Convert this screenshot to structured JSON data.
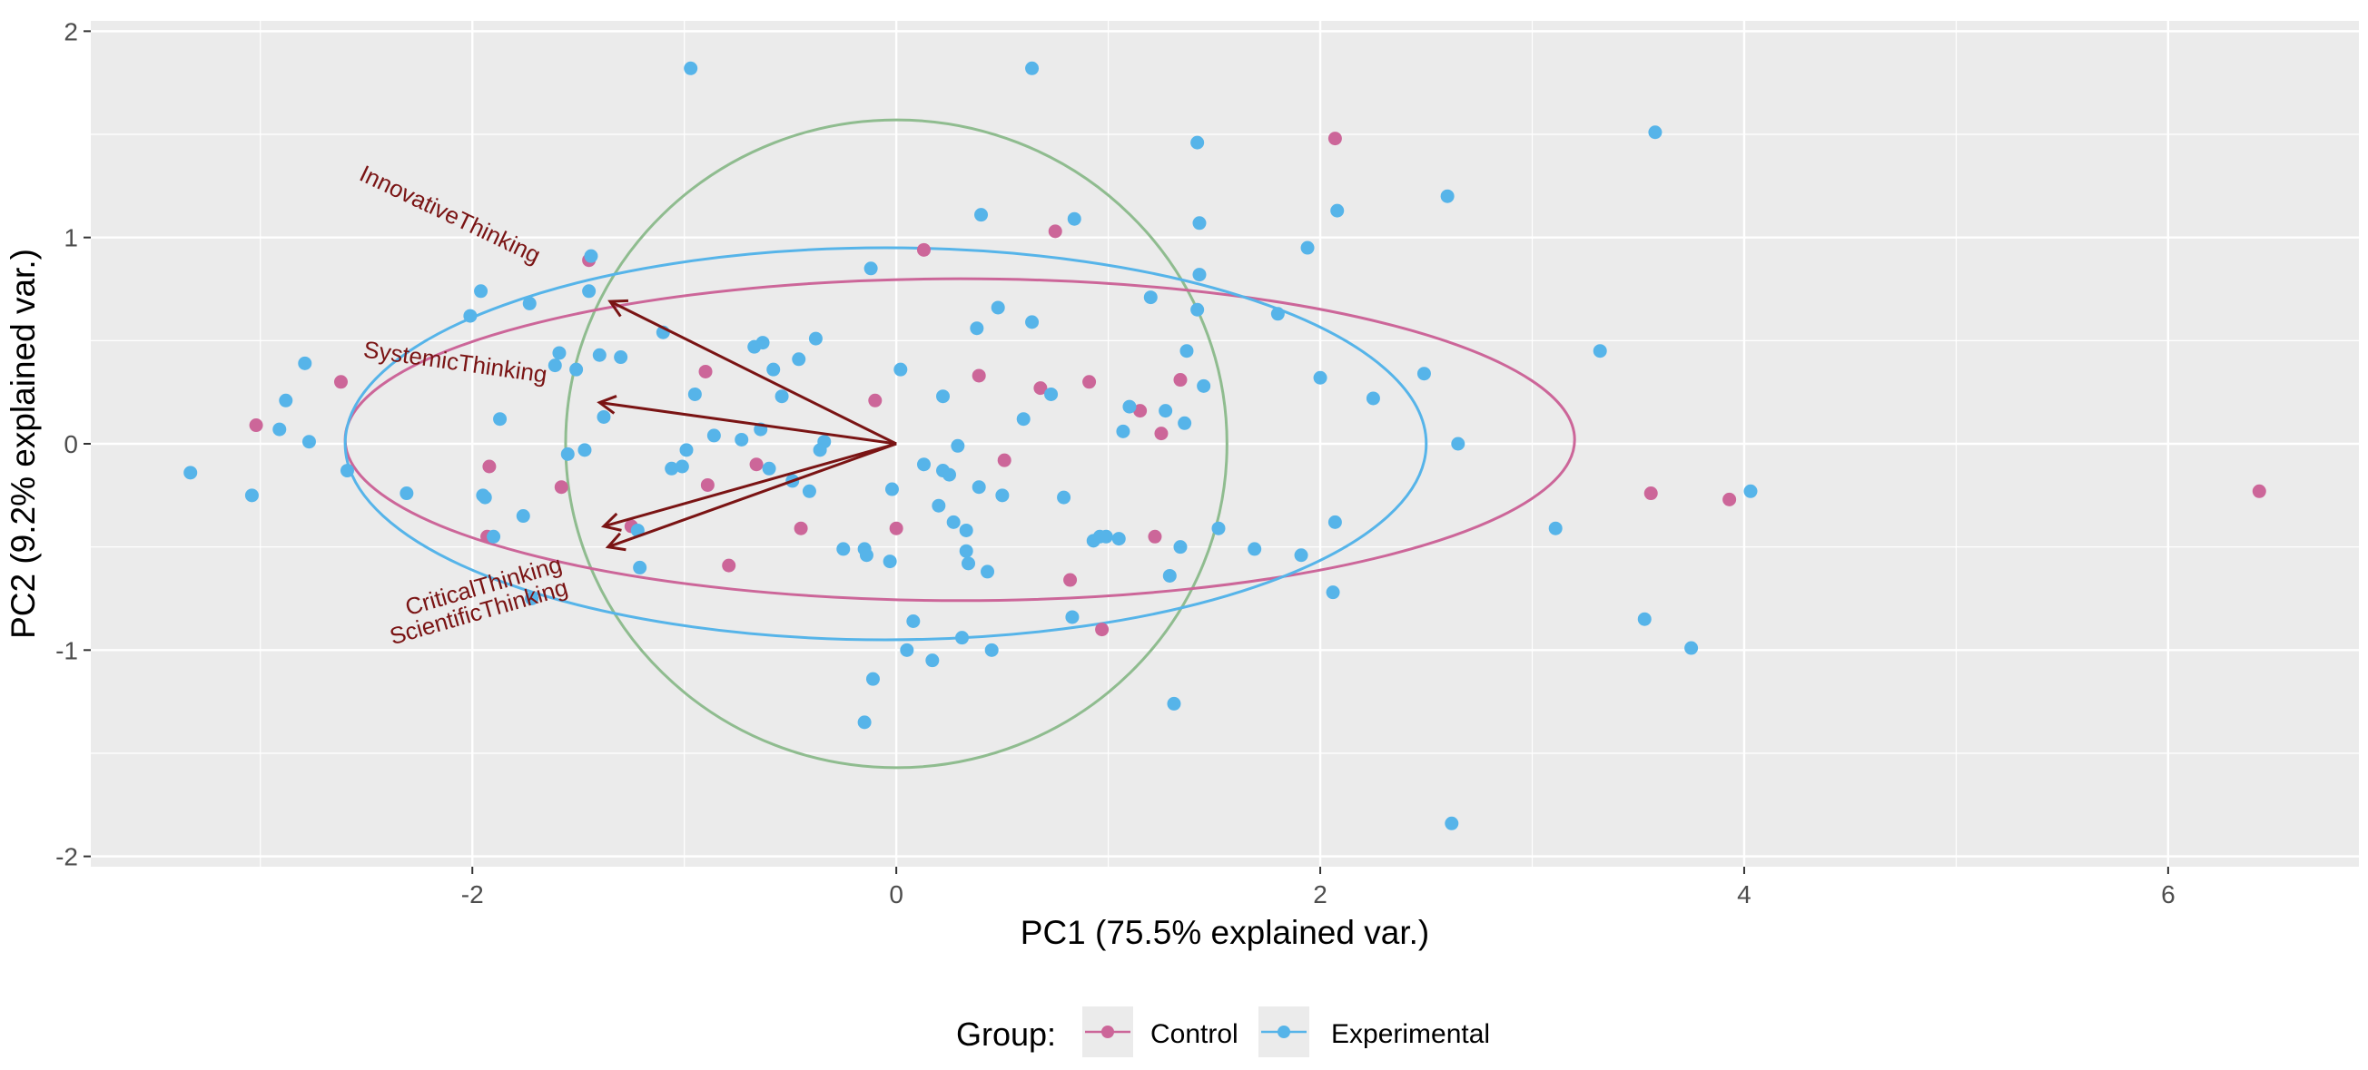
{
  "chart_data": {
    "type": "scatter",
    "subtype": "PCA biplot",
    "title": "",
    "xlabel": "PC1 (75.5% explained var.)",
    "ylabel": "PC2 (9.2% explained var.)",
    "xlim": [
      -3.8,
      6.9
    ],
    "ylim": [
      -2.05,
      2.05
    ],
    "x_ticks": [
      -2,
      0,
      2,
      4,
      6
    ],
    "y_ticks": [
      -2,
      -1,
      0,
      1,
      2
    ],
    "x_tick_labels": [
      "-2",
      "0",
      "2",
      "4",
      "6"
    ],
    "y_tick_labels": [
      "-2",
      "-1",
      "0",
      "1",
      "2"
    ],
    "grid": true,
    "legend": {
      "title": "Group:",
      "placement": "bottom",
      "entries": [
        {
          "name": "Control",
          "color": "#cc6699"
        },
        {
          "name": "Experimental",
          "color": "#56b4e9"
        }
      ]
    },
    "colors": {
      "control": "#cc6699",
      "experimental": "#56b4e9",
      "arrow": "#7a1414",
      "circle": "#8fbc8f",
      "panel": "#ebebeb",
      "grid": "#ffffff"
    },
    "loadings": [
      {
        "name": "InnovativeThinking",
        "x": -1.35,
        "y": 0.69
      },
      {
        "name": "SystemicThinking",
        "x": -1.4,
        "y": 0.2
      },
      {
        "name": "CriticalThinking",
        "x": -1.38,
        "y": -0.4
      },
      {
        "name": "ScientificThinking",
        "x": -1.36,
        "y": -0.5
      }
    ],
    "correlation_circle": {
      "center": [
        0,
        0
      ],
      "rx": 1.56,
      "ry": 1.57
    },
    "ellipses": [
      {
        "group": "Control",
        "cx": 0.3,
        "cy": 0.02,
        "rx": 2.9,
        "ry": 0.78
      },
      {
        "group": "Experimental",
        "cx": -0.05,
        "cy": 0.0,
        "rx": 2.55,
        "ry": 0.95
      }
    ],
    "series": [
      {
        "name": "Control",
        "points": [
          [
            -3.02,
            0.09
          ],
          [
            -2.62,
            0.3
          ],
          [
            -1.92,
            -0.11
          ],
          [
            -1.93,
            -0.45
          ],
          [
            -1.58,
            -0.21
          ],
          [
            -1.45,
            0.89
          ],
          [
            -1.25,
            -0.4
          ],
          [
            -0.9,
            0.35
          ],
          [
            -0.89,
            -0.2
          ],
          [
            -0.79,
            -0.59
          ],
          [
            -0.66,
            -0.1
          ],
          [
            -0.45,
            -0.41
          ],
          [
            -0.1,
            0.21
          ],
          [
            0.0,
            -0.41
          ],
          [
            0.13,
            0.94
          ],
          [
            0.39,
            0.33
          ],
          [
            0.51,
            -0.08
          ],
          [
            0.68,
            0.27
          ],
          [
            0.75,
            1.03
          ],
          [
            0.82,
            -0.66
          ],
          [
            0.91,
            0.3
          ],
          [
            0.97,
            -0.9
          ],
          [
            1.15,
            0.16
          ],
          [
            1.22,
            -0.45
          ],
          [
            1.25,
            0.05
          ],
          [
            1.34,
            0.31
          ],
          [
            2.07,
            1.48
          ],
          [
            3.56,
            -0.24
          ],
          [
            3.93,
            -0.27
          ],
          [
            6.43,
            -0.23
          ]
        ]
      },
      {
        "name": "Experimental",
        "points": [
          [
            -3.33,
            -0.14
          ],
          [
            -3.04,
            -0.25
          ],
          [
            -2.88,
            0.21
          ],
          [
            -2.91,
            0.07
          ],
          [
            -2.79,
            0.39
          ],
          [
            -2.77,
            0.01
          ],
          [
            -2.59,
            -0.13
          ],
          [
            -2.31,
            -0.24
          ],
          [
            -2.01,
            0.62
          ],
          [
            -1.96,
            0.74
          ],
          [
            -1.95,
            -0.25
          ],
          [
            -1.94,
            -0.26
          ],
          [
            -1.9,
            -0.45
          ],
          [
            -1.87,
            0.12
          ],
          [
            -1.76,
            -0.35
          ],
          [
            -1.73,
            0.68
          ],
          [
            -1.72,
            -0.75
          ],
          [
            -1.61,
            0.38
          ],
          [
            -1.59,
            0.44
          ],
          [
            -1.55,
            -0.05
          ],
          [
            -1.51,
            0.36
          ],
          [
            -1.47,
            -0.03
          ],
          [
            -1.45,
            0.74
          ],
          [
            -1.44,
            0.91
          ],
          [
            -1.4,
            0.43
          ],
          [
            -1.38,
            0.13
          ],
          [
            -1.3,
            0.42
          ],
          [
            -1.21,
            -0.6
          ],
          [
            -1.22,
            -0.42
          ],
          [
            -1.1,
            0.54
          ],
          [
            -1.06,
            -0.12
          ],
          [
            -1.01,
            -0.11
          ],
          [
            -0.99,
            -0.03
          ],
          [
            -0.97,
            1.82
          ],
          [
            -0.95,
            0.24
          ],
          [
            -0.86,
            0.04
          ],
          [
            -0.73,
            0.02
          ],
          [
            -0.67,
            0.47
          ],
          [
            -0.63,
            0.49
          ],
          [
            -0.64,
            0.07
          ],
          [
            -0.6,
            -0.12
          ],
          [
            -0.58,
            0.36
          ],
          [
            -0.54,
            0.23
          ],
          [
            -0.49,
            -0.18
          ],
          [
            -0.46,
            0.41
          ],
          [
            -0.41,
            -0.23
          ],
          [
            -0.38,
            0.51
          ],
          [
            -0.36,
            -0.03
          ],
          [
            -0.34,
            0.01
          ],
          [
            -0.25,
            -0.51
          ],
          [
            -0.15,
            -0.51
          ],
          [
            -0.15,
            -1.35
          ],
          [
            -0.14,
            -0.54
          ],
          [
            -0.11,
            -1.14
          ],
          [
            -0.12,
            0.85
          ],
          [
            -0.03,
            -0.57
          ],
          [
            -0.02,
            -0.22
          ],
          [
            0.02,
            0.36
          ],
          [
            0.05,
            -1.0
          ],
          [
            0.08,
            -0.86
          ],
          [
            0.13,
            -0.1
          ],
          [
            0.17,
            -1.05
          ],
          [
            0.2,
            -0.3
          ],
          [
            0.22,
            -0.13
          ],
          [
            0.22,
            0.23
          ],
          [
            0.25,
            -0.15
          ],
          [
            0.27,
            -0.38
          ],
          [
            0.29,
            -0.01
          ],
          [
            0.31,
            -0.94
          ],
          [
            0.33,
            -0.42
          ],
          [
            0.33,
            -0.52
          ],
          [
            0.34,
            -0.58
          ],
          [
            0.38,
            0.56
          ],
          [
            0.39,
            -0.21
          ],
          [
            0.4,
            1.11
          ],
          [
            0.43,
            -0.62
          ],
          [
            0.45,
            -1.0
          ],
          [
            0.48,
            0.66
          ],
          [
            0.5,
            -0.25
          ],
          [
            0.6,
            0.12
          ],
          [
            0.64,
            1.82
          ],
          [
            0.64,
            0.59
          ],
          [
            0.73,
            0.24
          ],
          [
            0.79,
            -0.26
          ],
          [
            0.83,
            -0.84
          ],
          [
            0.84,
            1.09
          ],
          [
            0.93,
            -0.47
          ],
          [
            0.96,
            -0.45
          ],
          [
            0.99,
            -0.45
          ],
          [
            1.05,
            -0.46
          ],
          [
            1.07,
            0.06
          ],
          [
            1.1,
            0.18
          ],
          [
            1.2,
            0.71
          ],
          [
            1.27,
            0.16
          ],
          [
            1.29,
            -0.64
          ],
          [
            1.31,
            -1.26
          ],
          [
            1.34,
            -0.5
          ],
          [
            1.36,
            0.1
          ],
          [
            1.37,
            0.45
          ],
          [
            1.42,
            1.46
          ],
          [
            1.42,
            0.65
          ],
          [
            1.43,
            0.82
          ],
          [
            1.43,
            1.07
          ],
          [
            1.45,
            0.28
          ],
          [
            1.52,
            -0.41
          ],
          [
            1.69,
            -0.51
          ],
          [
            1.8,
            0.63
          ],
          [
            1.91,
            -0.54
          ],
          [
            1.94,
            0.95
          ],
          [
            2.0,
            0.32
          ],
          [
            2.08,
            1.13
          ],
          [
            2.07,
            -0.38
          ],
          [
            2.06,
            -0.72
          ],
          [
            2.25,
            0.22
          ],
          [
            2.49,
            0.34
          ],
          [
            2.6,
            1.2
          ],
          [
            2.62,
            -1.84
          ],
          [
            2.65,
            0.0
          ],
          [
            3.11,
            -0.41
          ],
          [
            3.32,
            0.45
          ],
          [
            3.53,
            -0.85
          ],
          [
            3.58,
            1.51
          ],
          [
            3.75,
            -0.99
          ],
          [
            4.03,
            -0.23
          ]
        ]
      }
    ]
  }
}
